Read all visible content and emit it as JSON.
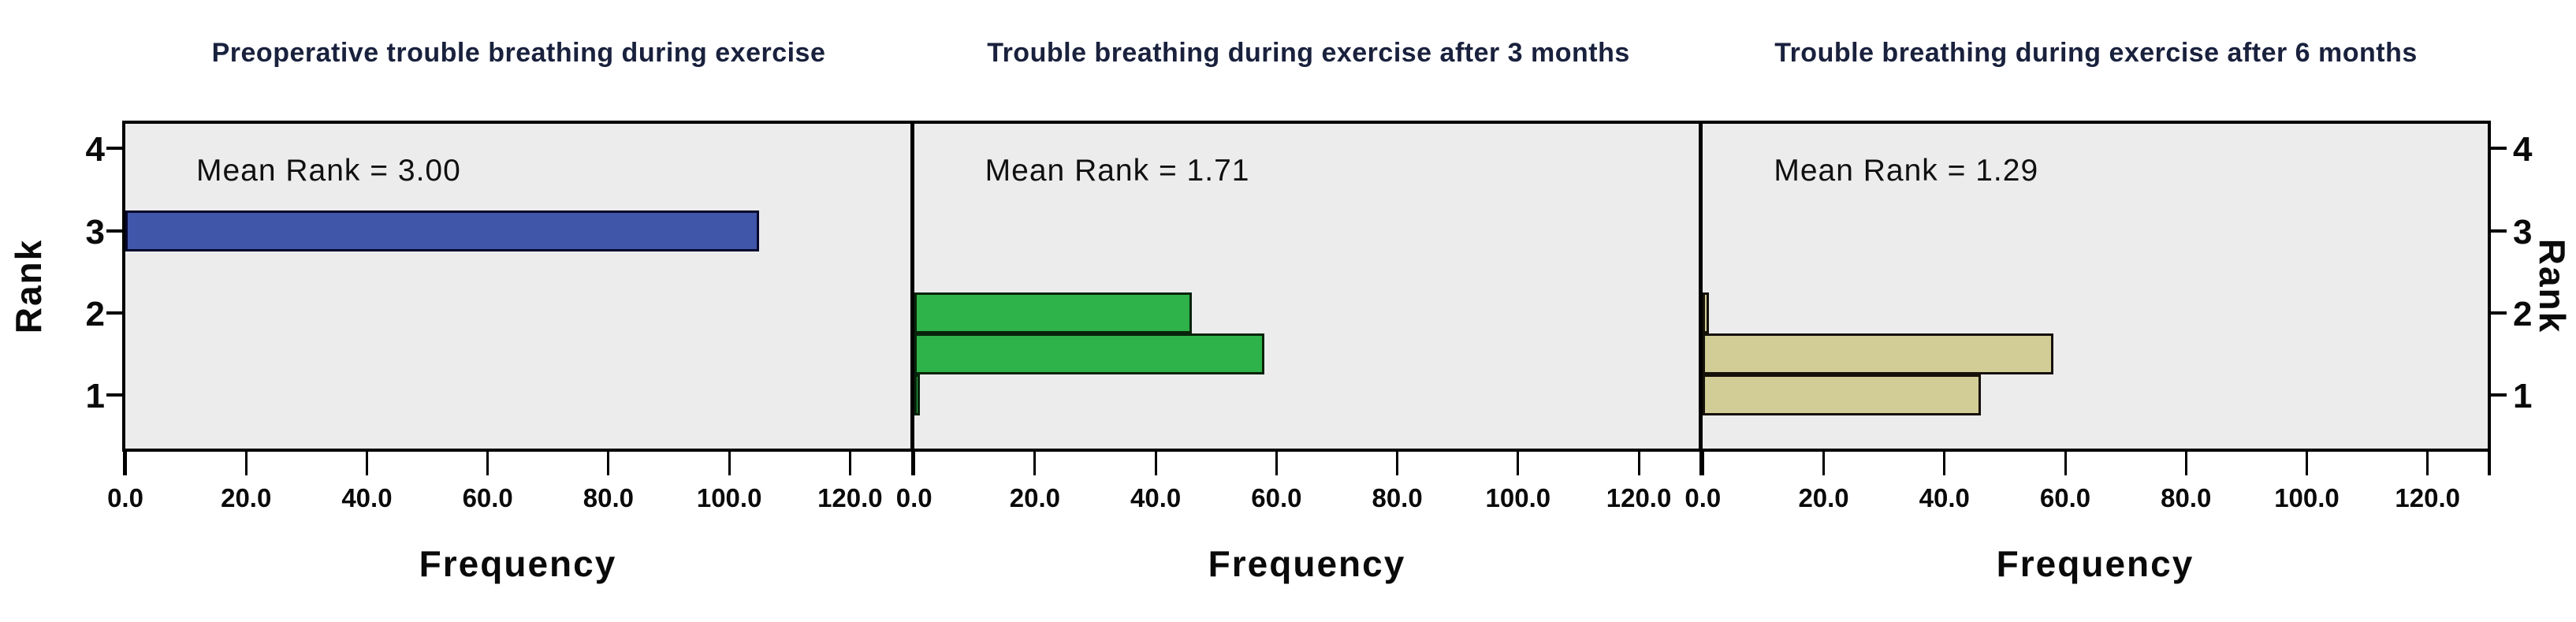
{
  "figure": {
    "background": "#ffffff",
    "plot_background": "#ececec",
    "frame_color": "#000000",
    "title_color": "#19213d"
  },
  "axes": {
    "x_label": "Frequency",
    "y_label": "Rank",
    "x_tick_values": [
      0,
      20,
      40,
      60,
      80,
      100,
      120
    ],
    "x_tick_labels": [
      "0.0",
      "20.0",
      "40.0",
      "60.0",
      "80.0",
      "100.0",
      "120.0"
    ],
    "y_tick_values": [
      4,
      3,
      2,
      1
    ],
    "y_tick_labels": [
      "4",
      "3",
      "2",
      "1"
    ],
    "xlim": [
      0,
      130
    ],
    "ylim": [
      0.35,
      4.3
    ],
    "grid": "off"
  },
  "chart_data": [
    {
      "type": "bar",
      "orientation": "horizontal",
      "title": "Preoperative trouble breathing during exercise",
      "annotation": "Mean Rank = 3.00",
      "mean_rank": 3.0,
      "xlabel": "Frequency",
      "ylabel": "Rank",
      "bar_color": "#4056a8",
      "bar_border_color": "#06082c",
      "bars": [
        {
          "rank": 3,
          "frequency": 105
        }
      ]
    },
    {
      "type": "bar",
      "orientation": "horizontal",
      "title": "Trouble breathing during exercise after 3 months",
      "annotation": "Mean Rank = 1.71",
      "mean_rank": 1.71,
      "xlabel": "Frequency",
      "ylabel": "Rank",
      "bar_color": "#2eb24a",
      "bar_border_color": "#07230b",
      "bars": [
        {
          "rank": 2,
          "frequency": 46
        },
        {
          "rank": 1.5,
          "frequency": 58
        },
        {
          "rank": 1,
          "frequency": 1
        }
      ]
    },
    {
      "type": "bar",
      "orientation": "horizontal",
      "title": "Trouble breathing during exercise after 6 months",
      "annotation": "Mean Rank = 1.29",
      "mean_rank": 1.29,
      "xlabel": "Frequency",
      "ylabel": "Rank",
      "bar_color": "#d2cc96",
      "bar_border_color": "#15100a",
      "bars": [
        {
          "rank": 2,
          "frequency": 1
        },
        {
          "rank": 1.5,
          "frequency": 58
        },
        {
          "rank": 1,
          "frequency": 46
        }
      ]
    }
  ]
}
